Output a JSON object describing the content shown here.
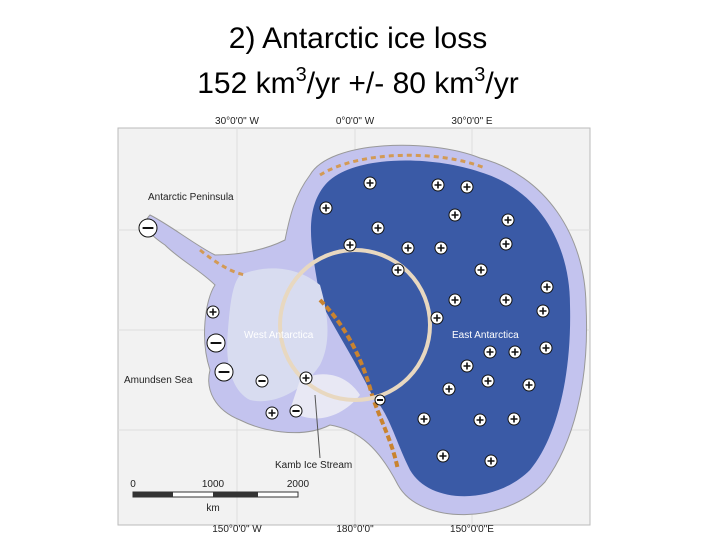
{
  "title": {
    "line1": "2) Antarctic ice loss",
    "line2": [
      "152 km",
      "3",
      "/yr +/- 80 km",
      "3",
      "/yr"
    ]
  },
  "map": {
    "top_labels": [
      "30°0'0\" W",
      "0°0'0\" W",
      "30°0'0\" E"
    ],
    "bottom_labels": [
      "150°0'0\" W",
      "180°0'0\"",
      "150°0'0\"E"
    ],
    "region_labels": {
      "peninsula": "Antarctic Peninsula",
      "west": "West Antarctica",
      "east": "East Antarctica",
      "sea": "Amundsen Sea",
      "stream": "Kamb Ice Stream"
    },
    "scale": {
      "ticks": [
        "0",
        "1000",
        "2000"
      ],
      "unit": "km"
    }
  }
}
